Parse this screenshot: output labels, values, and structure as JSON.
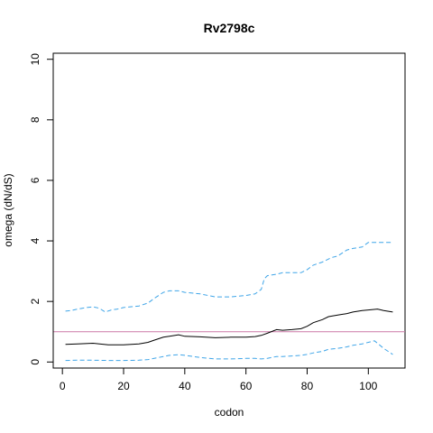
{
  "chart_data": {
    "type": "line",
    "title": "Rv2798c",
    "xlabel": "codon",
    "ylabel": "omega (dN/dS)",
    "xlim": [
      -3,
      112
    ],
    "ylim": [
      -0.2,
      10.2
    ],
    "x_ticks": [
      0,
      20,
      40,
      60,
      80,
      100
    ],
    "y_ticks": [
      0,
      2,
      4,
      6,
      8,
      10
    ],
    "grid": false,
    "reference_line": {
      "y": 1,
      "color": "#cc79a7"
    },
    "series": [
      {
        "role": "omega estimate",
        "color": "#000000",
        "dash": "solid",
        "x": [
          1,
          5,
          10,
          15,
          20,
          25,
          28,
          30,
          33,
          35,
          38,
          40,
          45,
          50,
          55,
          60,
          63,
          65,
          67,
          70,
          72,
          75,
          78,
          80,
          82,
          85,
          87,
          90,
          93,
          95,
          98,
          100,
          103,
          105,
          108
        ],
        "y": [
          0.58,
          0.6,
          0.62,
          0.57,
          0.57,
          0.6,
          0.65,
          0.72,
          0.82,
          0.85,
          0.9,
          0.85,
          0.83,
          0.8,
          0.82,
          0.82,
          0.84,
          0.88,
          0.95,
          1.07,
          1.05,
          1.07,
          1.1,
          1.18,
          1.3,
          1.4,
          1.5,
          1.55,
          1.6,
          1.65,
          1.7,
          1.72,
          1.75,
          1.7,
          1.65
        ]
      },
      {
        "role": "upper bound",
        "color": "#3fa5e8",
        "dash": "dashed",
        "x": [
          1,
          3,
          5,
          8,
          10,
          12,
          14,
          16,
          18,
          20,
          25,
          28,
          30,
          33,
          35,
          38,
          40,
          45,
          50,
          55,
          60,
          63,
          65,
          66,
          67,
          70,
          72,
          75,
          78,
          80,
          82,
          85,
          88,
          90,
          93,
          95,
          98,
          100,
          103,
          105,
          108
        ],
        "y": [
          1.68,
          1.7,
          1.75,
          1.8,
          1.82,
          1.78,
          1.65,
          1.72,
          1.75,
          1.8,
          1.85,
          1.95,
          2.1,
          2.3,
          2.35,
          2.35,
          2.3,
          2.25,
          2.15,
          2.15,
          2.2,
          2.25,
          2.4,
          2.75,
          2.85,
          2.9,
          2.95,
          2.95,
          2.95,
          3.05,
          3.2,
          3.3,
          3.45,
          3.5,
          3.7,
          3.75,
          3.8,
          3.95,
          3.95,
          3.95,
          3.95
        ]
      },
      {
        "role": "lower bound",
        "color": "#3fa5e8",
        "dash": "dashed",
        "x": [
          1,
          5,
          10,
          15,
          20,
          25,
          28,
          30,
          33,
          35,
          38,
          40,
          45,
          50,
          55,
          60,
          63,
          65,
          67,
          70,
          72,
          75,
          78,
          80,
          82,
          85,
          87,
          90,
          93,
          95,
          98,
          100,
          102,
          103,
          105,
          108
        ],
        "y": [
          0.05,
          0.06,
          0.06,
          0.05,
          0.05,
          0.06,
          0.08,
          0.12,
          0.18,
          0.22,
          0.24,
          0.22,
          0.15,
          0.1,
          0.1,
          0.12,
          0.12,
          0.1,
          0.12,
          0.18,
          0.18,
          0.2,
          0.22,
          0.25,
          0.3,
          0.35,
          0.42,
          0.45,
          0.5,
          0.55,
          0.6,
          0.65,
          0.7,
          0.62,
          0.45,
          0.25
        ]
      }
    ]
  }
}
